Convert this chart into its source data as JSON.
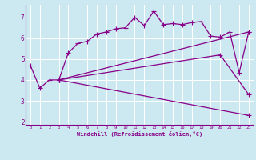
{
  "xlabel": "Windchill (Refroidissement éolien,°C)",
  "bg_color": "#cce8f0",
  "line_color": "#880088",
  "grid_color": "#ffffff",
  "xlim": [
    -0.5,
    23.5
  ],
  "ylim": [
    1.85,
    7.6
  ],
  "xticks": [
    0,
    1,
    2,
    3,
    4,
    5,
    6,
    7,
    8,
    9,
    10,
    11,
    12,
    13,
    14,
    15,
    16,
    17,
    18,
    19,
    20,
    21,
    22,
    23
  ],
  "yticks": [
    2,
    3,
    4,
    5,
    6,
    7
  ],
  "line1_x": [
    0,
    1,
    2,
    3,
    4,
    5,
    6,
    7,
    8,
    9,
    10,
    11,
    12,
    13,
    14,
    15,
    16,
    17,
    18,
    19,
    20,
    21,
    22,
    23
  ],
  "line1_y": [
    4.7,
    3.6,
    4.0,
    4.0,
    5.3,
    5.75,
    5.85,
    6.2,
    6.3,
    6.45,
    6.5,
    7.0,
    6.6,
    7.3,
    6.65,
    6.7,
    6.65,
    6.75,
    6.8,
    6.1,
    6.05,
    6.3,
    4.35,
    6.3
  ],
  "line2_x": [
    3,
    23
  ],
  "line2_y": [
    4.0,
    6.3
  ],
  "line3_x": [
    3,
    20,
    23
  ],
  "line3_y": [
    4.0,
    5.2,
    3.3
  ],
  "line4_x": [
    3,
    23
  ],
  "line4_y": [
    4.0,
    2.3
  ]
}
